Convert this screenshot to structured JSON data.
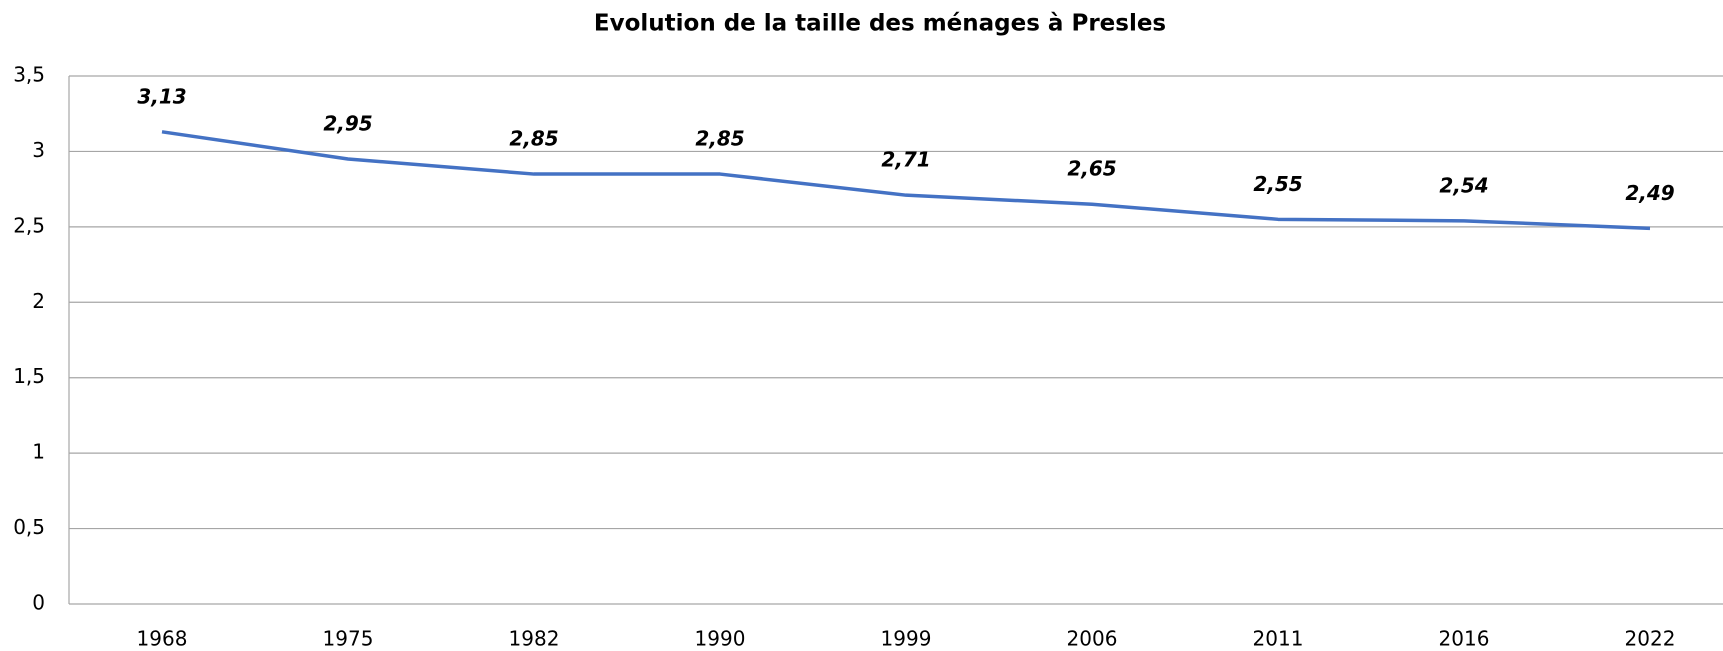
{
  "chart_data": {
    "type": "line",
    "title": "Evolution de la taille des ménages à Presles",
    "categories": [
      "1968",
      "1975",
      "1982",
      "1990",
      "1999",
      "2006",
      "2011",
      "2016",
      "2022"
    ],
    "series": [
      {
        "name": "Taille des ménages",
        "color": "#4472c4",
        "values": [
          3.13,
          2.95,
          2.85,
          2.85,
          2.71,
          2.65,
          2.55,
          2.54,
          2.49
        ],
        "value_labels": [
          "3,13",
          "2,95",
          "2,85",
          "2,85",
          "2,71",
          "2,65",
          "2,55",
          "2,54",
          "2,49"
        ]
      }
    ],
    "ylim": [
      0,
      3.5
    ],
    "yticks": [
      0,
      {
        "value": 0.5,
        "label": "0,5"
      },
      1,
      {
        "value": 1.5,
        "label": "1,5"
      },
      2,
      {
        "value": 2.5,
        "label": "2,5"
      },
      3,
      {
        "value": 3.5,
        "label": "3,5"
      }
    ],
    "grid": true
  }
}
